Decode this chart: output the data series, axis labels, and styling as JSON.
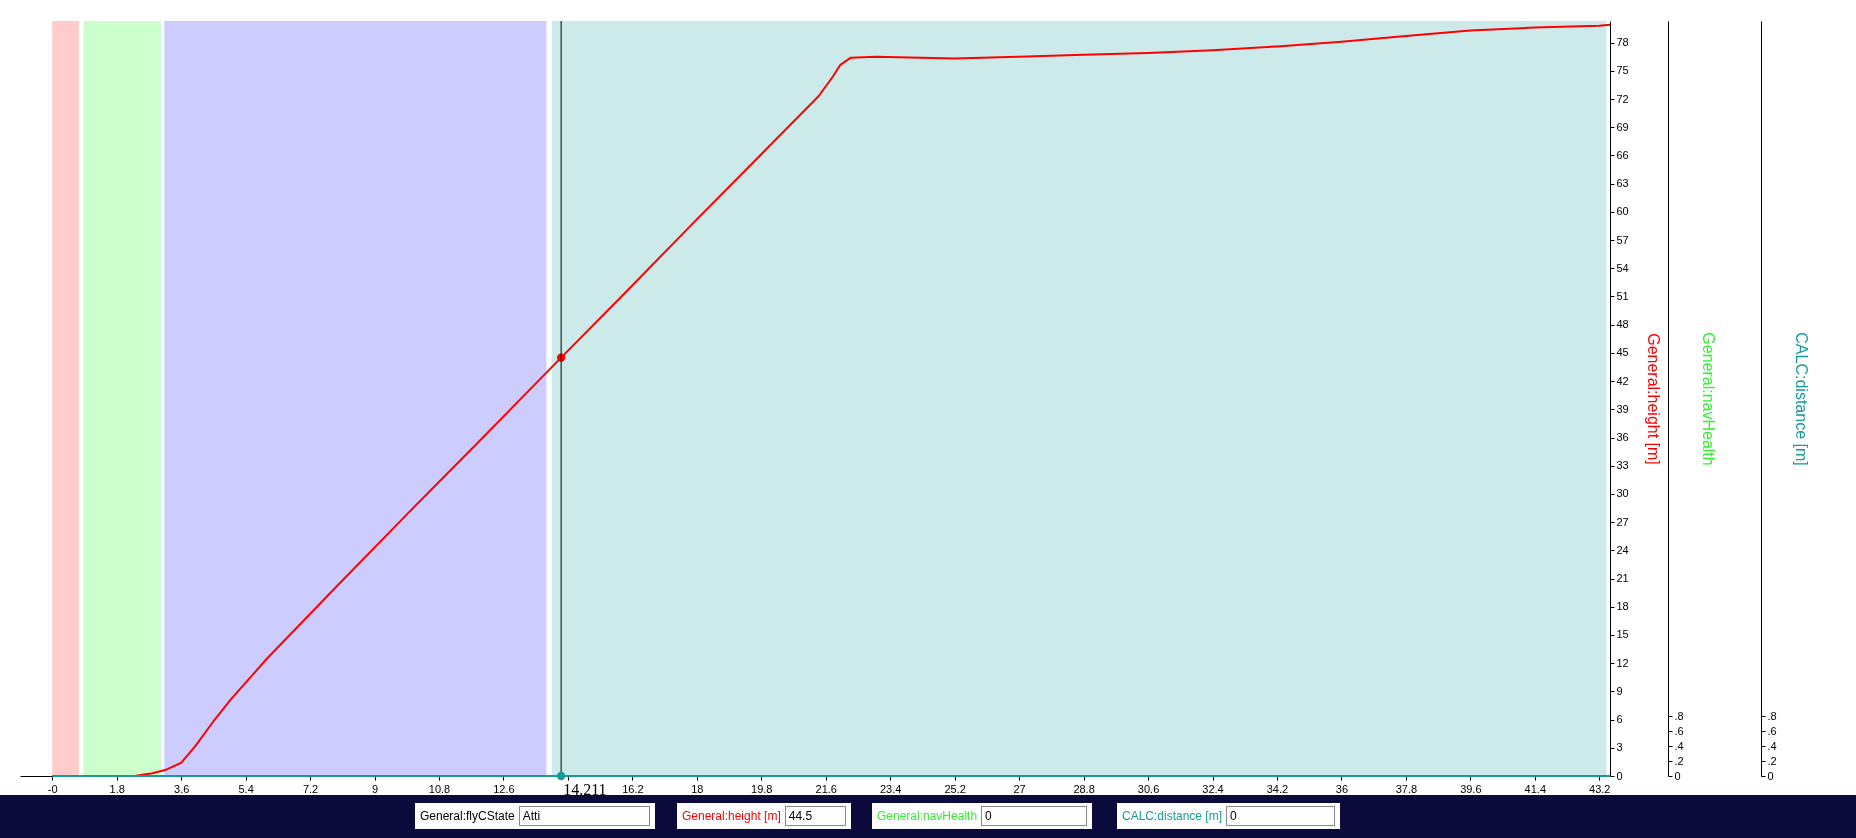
{
  "chart_data": {
    "type": "line",
    "xlim": [
      -0.9,
      43.5
    ],
    "xticks": [
      {
        "value": 0,
        "label": "-0"
      },
      1.8,
      3.6,
      5.4,
      7.2,
      9,
      10.8,
      12.6,
      {
        "value": 14.4,
        "label": null
      },
      16.2,
      18,
      19.8,
      21.6,
      23.4,
      25.2,
      27,
      28.8,
      30.6,
      32.4,
      34.2,
      36,
      37.8,
      39.6,
      41.4,
      43.2
    ],
    "ylim": [
      0,
      80.3
    ],
    "yticks": [
      0,
      3,
      6,
      9,
      12,
      15,
      18,
      21,
      24,
      27,
      30,
      33,
      36,
      39,
      42,
      45,
      48,
      51,
      54,
      57,
      60,
      63,
      66,
      69,
      72,
      75,
      78
    ],
    "ylabel": "General:height [m]",
    "y2lim": [
      0,
      10.07
    ],
    "y2ticks": [
      0,
      {
        "value": 0.2,
        "label": ".2"
      },
      {
        "value": 0.4,
        "label": ".4"
      },
      {
        "value": 0.6,
        "label": ".6"
      },
      {
        "value": 0.8,
        "label": ".8"
      }
    ],
    "y2label": "General:navHealth",
    "y3lim": [
      0,
      10.07
    ],
    "y3ticks": [
      0,
      {
        "value": 0.2,
        "label": ".2"
      },
      {
        "value": 0.4,
        "label": ".4"
      },
      {
        "value": 0.6,
        "label": ".6"
      },
      {
        "value": 0.8,
        "label": ".8"
      }
    ],
    "y3label": "CALC:distance [m]",
    "series": [
      {
        "color": "#ff0000",
        "x": [
          2.3,
          2.8,
          3.2,
          3.6,
          4.0,
          4.5,
          5,
          6,
          8,
          10,
          12,
          14.211,
          16,
          18,
          20,
          21.4,
          21.8,
          22.0,
          22.3,
          23,
          25.2,
          27,
          28.8,
          30.6,
          32.4,
          34.2,
          36,
          37.8,
          39.6,
          41.4,
          43.2,
          43.5
        ],
        "values": [
          0,
          0.3,
          0.7,
          1.4,
          3.2,
          5.8,
          8.2,
          12.5,
          20.4,
          28.2,
          35.9,
          44.5,
          51.4,
          59.2,
          66.9,
          72.3,
          74.4,
          75.6,
          76.4,
          76.5,
          76.3,
          76.5,
          76.7,
          76.9,
          77.2,
          77.6,
          78.1,
          78.7,
          79.3,
          79.6,
          79.8,
          79.9
        ]
      },
      {
        "axis": "y3",
        "color": "#169b9b",
        "x": [
          0,
          43.5
        ],
        "values": [
          0,
          0
        ]
      },
      {
        "type": "scatter",
        "marker": "circle",
        "color": "#ff0000",
        "x": [
          14.211
        ],
        "values": [
          44.5
        ]
      },
      {
        "type": "scatter",
        "marker": "circle",
        "axis": "y3",
        "color": "#169b9b",
        "x": [
          14.211
        ],
        "values": [
          0
        ]
      }
    ],
    "bands": [
      {
        "axis": "x",
        "from": 0,
        "to": 0.75,
        "color": "#ffcccc"
      },
      {
        "axis": "x",
        "from": 0.87,
        "to": 3.04,
        "color": "#ccffcc"
      },
      {
        "axis": "x",
        "from": 3.13,
        "to": 13.8,
        "color": "#ccccff"
      },
      {
        "axis": "x",
        "from": 13.95,
        "to": 43.4,
        "color": "#cceaea"
      }
    ],
    "ref_lines": [
      {
        "axis": "x",
        "value": 14.211,
        "label": "14.211",
        "color": "#000000"
      }
    ],
    "marker": "none",
    "grid": false,
    "legend": false,
    "annotations": [
      "General:flyCState",
      "Atti",
      "General:height [m]",
      "44.5",
      "General:navHealth",
      "0",
      "CALC:distance [m]",
      "0"
    ]
  }
}
